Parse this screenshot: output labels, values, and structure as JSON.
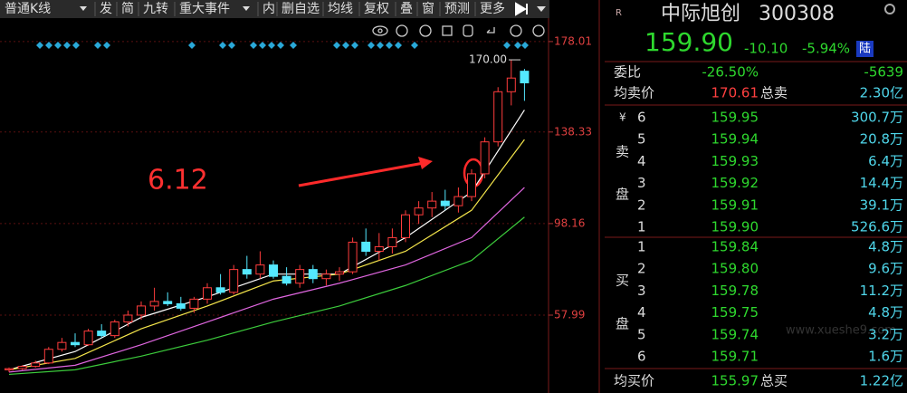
{
  "toolbar": [
    "普通K线",
    "发",
    "简",
    "九转",
    "重大事件",
    "内",
    "删自选",
    "均线",
    "复权",
    "叠",
    "窗",
    "预测",
    "更多"
  ],
  "chart_data": {
    "type": "candlestick",
    "ylim": [
      27.4,
      188.3
    ],
    "yticks": [
      57.99,
      98.16,
      138.33,
      178.01
    ],
    "up_color": "#ff3c3c",
    "down_color": "#54e8ff",
    "candles": [
      [
        34,
        35,
        33,
        34.5
      ],
      [
        34.5,
        36,
        34,
        35.5
      ],
      [
        35.5,
        38,
        35,
        37
      ],
      [
        37,
        44,
        36.5,
        43
      ],
      [
        43,
        48,
        42,
        46
      ],
      [
        46,
        50,
        44,
        45
      ],
      [
        45,
        52,
        44.5,
        51
      ],
      [
        51,
        54,
        48,
        49
      ],
      [
        49,
        56,
        48,
        55
      ],
      [
        55,
        60,
        53,
        58
      ],
      [
        58,
        64,
        56,
        62
      ],
      [
        62,
        70,
        60,
        64
      ],
      [
        64,
        68,
        62,
        63
      ],
      [
        63,
        66,
        60,
        61
      ],
      [
        61,
        66,
        59,
        65
      ],
      [
        65,
        72,
        63,
        70
      ],
      [
        70,
        76,
        67,
        68
      ],
      [
        68,
        80,
        67,
        78
      ],
      [
        78,
        84,
        74,
        76
      ],
      [
        76,
        86,
        74,
        80
      ],
      [
        80,
        82,
        74,
        75
      ],
      [
        75,
        79,
        71,
        72
      ],
      [
        72,
        80,
        70,
        78
      ],
      [
        78,
        80,
        72,
        74
      ],
      [
        74,
        78,
        71,
        76
      ],
      [
        76,
        79,
        73,
        77
      ],
      [
        77,
        92,
        76,
        90
      ],
      [
        90,
        96,
        84,
        86
      ],
      [
        86,
        94,
        82,
        88
      ],
      [
        88,
        96,
        85,
        92
      ],
      [
        92,
        104,
        90,
        102
      ],
      [
        102,
        108,
        98,
        105
      ],
      [
        105,
        112,
        101,
        108
      ],
      [
        108,
        113,
        104,
        106
      ],
      [
        106,
        114,
        103,
        110
      ],
      [
        110,
        122,
        108,
        120
      ],
      [
        120,
        136,
        118,
        134
      ],
      [
        134,
        158,
        132,
        156
      ],
      [
        156,
        170,
        150,
        162
      ],
      [
        165,
        166,
        152,
        159.9
      ]
    ],
    "ma": {
      "x": [
        0,
        5,
        10,
        15,
        20,
        25,
        30,
        35,
        39
      ],
      "series": [
        {
          "color": "#ffffff",
          "values": [
            34,
            42,
            57,
            66,
            76,
            76,
            92,
            112,
            148
          ]
        },
        {
          "color": "#f5e64b",
          "values": [
            34,
            39,
            52,
            62,
            73,
            76,
            86,
            104,
            135
          ]
        },
        {
          "color": "#e066e0",
          "values": [
            33,
            36,
            45,
            55,
            65,
            72,
            80,
            92,
            114
          ]
        },
        {
          "color": "#3ccc3c",
          "values": [
            32,
            34,
            40,
            47,
            55,
            62,
            71,
            82,
            101
          ]
        }
      ]
    },
    "high_label": {
      "value": 170,
      "label": "170.00"
    },
    "annotation": "6.12"
  },
  "panel": {
    "r_icon": "R",
    "name": "中际旭创",
    "code": "300308",
    "price": "159.90",
    "change": "-10.10",
    "change_pct": "-5.94%",
    "badge": "陆",
    "weibi": {
      "label": "委比",
      "pct": "-26.50%",
      "diff": "-5639"
    },
    "avg_sell": {
      "label": "均卖价",
      "value": "170.61",
      "total_label": "总卖",
      "total": "2.30亿"
    },
    "sell_side": {
      "symbol": "¥",
      "chars": [
        "卖",
        "盘"
      ],
      "levels": [
        {
          "level": "6",
          "price": "159.95",
          "volume": "300.7万"
        },
        {
          "level": "5",
          "price": "159.94",
          "volume": "20.8万"
        },
        {
          "level": "4",
          "price": "159.93",
          "volume": "6.4万"
        },
        {
          "level": "3",
          "price": "159.92",
          "volume": "14.4万"
        },
        {
          "level": "2",
          "price": "159.91",
          "volume": "39.1万"
        },
        {
          "level": "1",
          "price": "159.90",
          "volume": "526.6万"
        }
      ]
    },
    "buy_side": {
      "chars": [
        "买",
        "盘"
      ],
      "levels": [
        {
          "level": "1",
          "price": "159.84",
          "volume": "4.8万"
        },
        {
          "level": "2",
          "price": "159.80",
          "volume": "9.6万"
        },
        {
          "level": "3",
          "price": "159.78",
          "volume": "11.2万"
        },
        {
          "level": "4",
          "price": "159.75",
          "volume": "4.8万"
        },
        {
          "level": "5",
          "price": "159.74",
          "volume": "3.2万"
        },
        {
          "level": "6",
          "price": "159.71",
          "volume": "1.6万"
        }
      ]
    },
    "avg_buy": {
      "label": "均买价",
      "value": "155.97",
      "total_label": "总买",
      "total": "1.22亿"
    },
    "watermark": "www.xueshe9.com"
  }
}
